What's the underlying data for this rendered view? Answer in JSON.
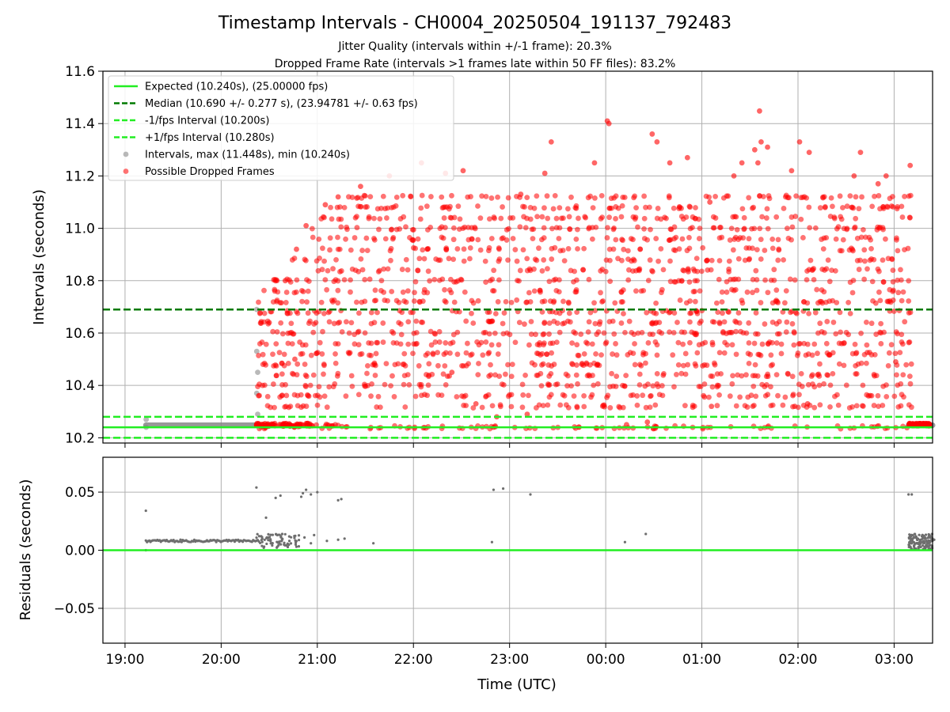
{
  "chart_data": [
    {
      "type": "scatter",
      "title": "Timestamp Intervals - CH0004_20250504_191137_792483",
      "subtitle_lines": [
        "Jitter Quality (intervals within +/-1 frame): 20.3%",
        "Dropped Frame Rate (intervals >1 frames late within 50 FF files): 83.2%"
      ],
      "ylabel": "Intervals (seconds)",
      "xlim_hours": [
        18.77,
        27.4
      ],
      "ylim": [
        10.18,
        11.6
      ],
      "yticks": [
        "10.2",
        "10.4",
        "10.6",
        "10.8",
        "11.0",
        "11.2",
        "11.4",
        "11.6"
      ],
      "grid": true,
      "legend_position": "upper-left",
      "lines": [
        {
          "name": "Expected (10.240s), (25.00000 fps)",
          "y": 10.24,
          "color": "#22ee22",
          "style": "solid"
        },
        {
          "name": "Median (10.690 +/- 0.277 s), (23.94781 +/- 0.63 fps)",
          "y": 10.69,
          "color": "#007a00",
          "style": "dashed"
        },
        {
          "name": "-1/fps Interval (10.200s)",
          "y": 10.2,
          "color": "#22ee22",
          "style": "dashed"
        },
        {
          "name": "+1/fps Interval (10.280s)",
          "y": 10.28,
          "color": "#22ee22",
          "style": "dashed"
        }
      ],
      "series": [
        {
          "name": "Intervals, max (11.448s), min (10.240s)",
          "color": "#808080",
          "segments": [
            {
              "x_start": "19:13",
              "x_end": "20:24",
              "value": 10.248
            },
            {
              "x_start": "03:09",
              "x_end": "03:24",
              "value": 10.248
            }
          ]
        },
        {
          "name": "Possible Dropped Frames",
          "color": "#ff0000",
          "x_range": [
            "20:22",
            "03:11"
          ],
          "value_range": [
            10.24,
            11.448
          ],
          "points": [
            {
              "x": "20:40",
              "y": 10.8
            },
            {
              "x": "20:47",
              "y": 10.92
            },
            {
              "x": "20:53",
              "y": 11.01
            },
            {
              "x": "21:05",
              "y": 11.09
            },
            {
              "x": "21:13",
              "y": 11.12
            },
            {
              "x": "21:27",
              "y": 11.16
            },
            {
              "x": "21:45",
              "y": 11.2
            },
            {
              "x": "22:05",
              "y": 11.25
            },
            {
              "x": "22:20",
              "y": 11.21
            },
            {
              "x": "22:31",
              "y": 11.22
            },
            {
              "x": "23:07",
              "y": 11.13
            },
            {
              "x": "23:22",
              "y": 11.21
            },
            {
              "x": "23:26",
              "y": 11.33
            },
            {
              "x": "23:53",
              "y": 11.25
            },
            {
              "x": "00:01",
              "y": 11.41
            },
            {
              "x": "00:02",
              "y": 11.4
            },
            {
              "x": "00:29",
              "y": 11.36
            },
            {
              "x": "00:32",
              "y": 11.33
            },
            {
              "x": "00:40",
              "y": 11.25
            },
            {
              "x": "00:51",
              "y": 11.27
            },
            {
              "x": "01:05",
              "y": 11.1
            },
            {
              "x": "01:20",
              "y": 11.2
            },
            {
              "x": "01:25",
              "y": 11.25
            },
            {
              "x": "01:33",
              "y": 11.3
            },
            {
              "x": "01:35",
              "y": 11.25
            },
            {
              "x": "01:36",
              "y": 11.448
            },
            {
              "x": "01:37",
              "y": 11.33
            },
            {
              "x": "01:41",
              "y": 11.31
            },
            {
              "x": "01:56",
              "y": 11.22
            },
            {
              "x": "02:01",
              "y": 11.33
            },
            {
              "x": "02:07",
              "y": 11.29
            },
            {
              "x": "02:35",
              "y": 11.2
            },
            {
              "x": "02:39",
              "y": 11.29
            },
            {
              "x": "02:50",
              "y": 11.17
            },
            {
              "x": "02:55",
              "y": 11.2
            },
            {
              "x": "03:10",
              "y": 11.24
            },
            {
              "x": "22:24",
              "y": 10.45
            },
            {
              "x": "22:39",
              "y": 10.33
            },
            {
              "x": "22:52",
              "y": 10.28
            },
            {
              "x": "23:11",
              "y": 10.29
            },
            {
              "x": "00:13",
              "y": 10.25
            },
            {
              "x": "00:26",
              "y": 10.26
            },
            {
              "x": "01:06",
              "y": 10.32
            },
            {
              "x": "01:58",
              "y": 10.32
            },
            {
              "x": "02:06",
              "y": 10.33
            },
            {
              "x": "02:44",
              "y": 10.36
            },
            {
              "x": "03:01",
              "y": 10.49
            },
            {
              "x": "22:50",
              "y": 10.24
            },
            {
              "x": "20:30",
              "y": 10.64
            },
            {
              "x": "20:46",
              "y": 10.5
            }
          ]
        }
      ]
    },
    {
      "type": "scatter",
      "xlabel": "Time (UTC)",
      "ylabel": "Residuals (seconds)",
      "ylim": [
        -0.08,
        0.08
      ],
      "yticks": [
        "−0.05",
        "0.00",
        "0.05"
      ],
      "xticks": [
        "19:00",
        "20:00",
        "21:00",
        "22:00",
        "23:00",
        "00:00",
        "01:00",
        "02:00",
        "03:00"
      ],
      "grid": true,
      "zero_line_color": "#22ee22",
      "series": [
        {
          "name": "Residuals",
          "color": "#6e6e6e",
          "segments": [
            {
              "x_start": "19:13",
              "x_end": "20:24",
              "value": 0.008
            }
          ],
          "points": [
            {
              "x": "19:13",
              "y": 0.034
            },
            {
              "x": "19:13",
              "y": 0.0
            },
            {
              "x": "20:22",
              "y": 0.054
            },
            {
              "x": "20:28",
              "y": 0.028
            },
            {
              "x": "20:34",
              "y": 0.045
            },
            {
              "x": "20:37",
              "y": 0.047
            },
            {
              "x": "20:50",
              "y": 0.046
            },
            {
              "x": "20:51",
              "y": 0.049
            },
            {
              "x": "20:53",
              "y": 0.052
            },
            {
              "x": "20:56",
              "y": 0.048
            },
            {
              "x": "21:00",
              "y": 0.05
            },
            {
              "x": "21:13",
              "y": 0.043
            },
            {
              "x": "21:15",
              "y": 0.044
            },
            {
              "x": "20:25",
              "y": 0.012
            },
            {
              "x": "20:31",
              "y": 0.006
            },
            {
              "x": "20:35",
              "y": 0.013
            },
            {
              "x": "20:38",
              "y": 0.01
            },
            {
              "x": "20:42",
              "y": 0.005
            },
            {
              "x": "20:47",
              "y": 0.003
            },
            {
              "x": "20:52",
              "y": 0.011
            },
            {
              "x": "20:56",
              "y": 0.006
            },
            {
              "x": "20:58",
              "y": 0.013
            },
            {
              "x": "21:06",
              "y": 0.008
            },
            {
              "x": "21:13",
              "y": 0.009
            },
            {
              "x": "21:17",
              "y": 0.01
            },
            {
              "x": "21:35",
              "y": 0.006
            },
            {
              "x": "22:49",
              "y": 0.007
            },
            {
              "x": "22:50",
              "y": 0.052
            },
            {
              "x": "22:56",
              "y": 0.053
            },
            {
              "x": "23:13",
              "y": 0.048
            },
            {
              "x": "00:12",
              "y": 0.007
            },
            {
              "x": "00:25",
              "y": 0.014
            },
            {
              "x": "03:09",
              "y": 0.048
            },
            {
              "x": "03:11",
              "y": 0.048
            },
            {
              "x": "03:10",
              "y": 0.01
            },
            {
              "x": "03:14",
              "y": 0.006
            },
            {
              "x": "03:18",
              "y": 0.012
            },
            {
              "x": "03:22",
              "y": 0.004
            },
            {
              "x": "03:25",
              "y": 0.009
            }
          ]
        }
      ]
    }
  ]
}
